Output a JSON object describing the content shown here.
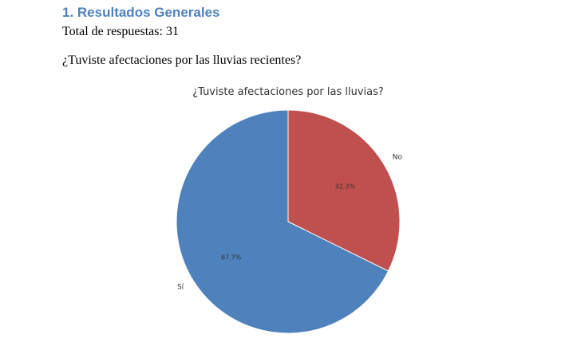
{
  "document": {
    "section_title": "1. Resultados Generales",
    "total_responses": "Total de respuestas: 31",
    "question": "¿Tuviste afectaciones por las lluvias recientes?"
  },
  "chart_data": {
    "type": "pie",
    "title": "¿Tuviste afectaciones por las lluvias?",
    "slices": [
      {
        "label": "No",
        "value": 32.3,
        "pct_label": "32.3%",
        "color": "#c0504d"
      },
      {
        "label": "Sí",
        "value": 67.7,
        "pct_label": "67.7%",
        "color": "#4f81bd"
      }
    ],
    "start": "top",
    "direction": "clockwise"
  }
}
